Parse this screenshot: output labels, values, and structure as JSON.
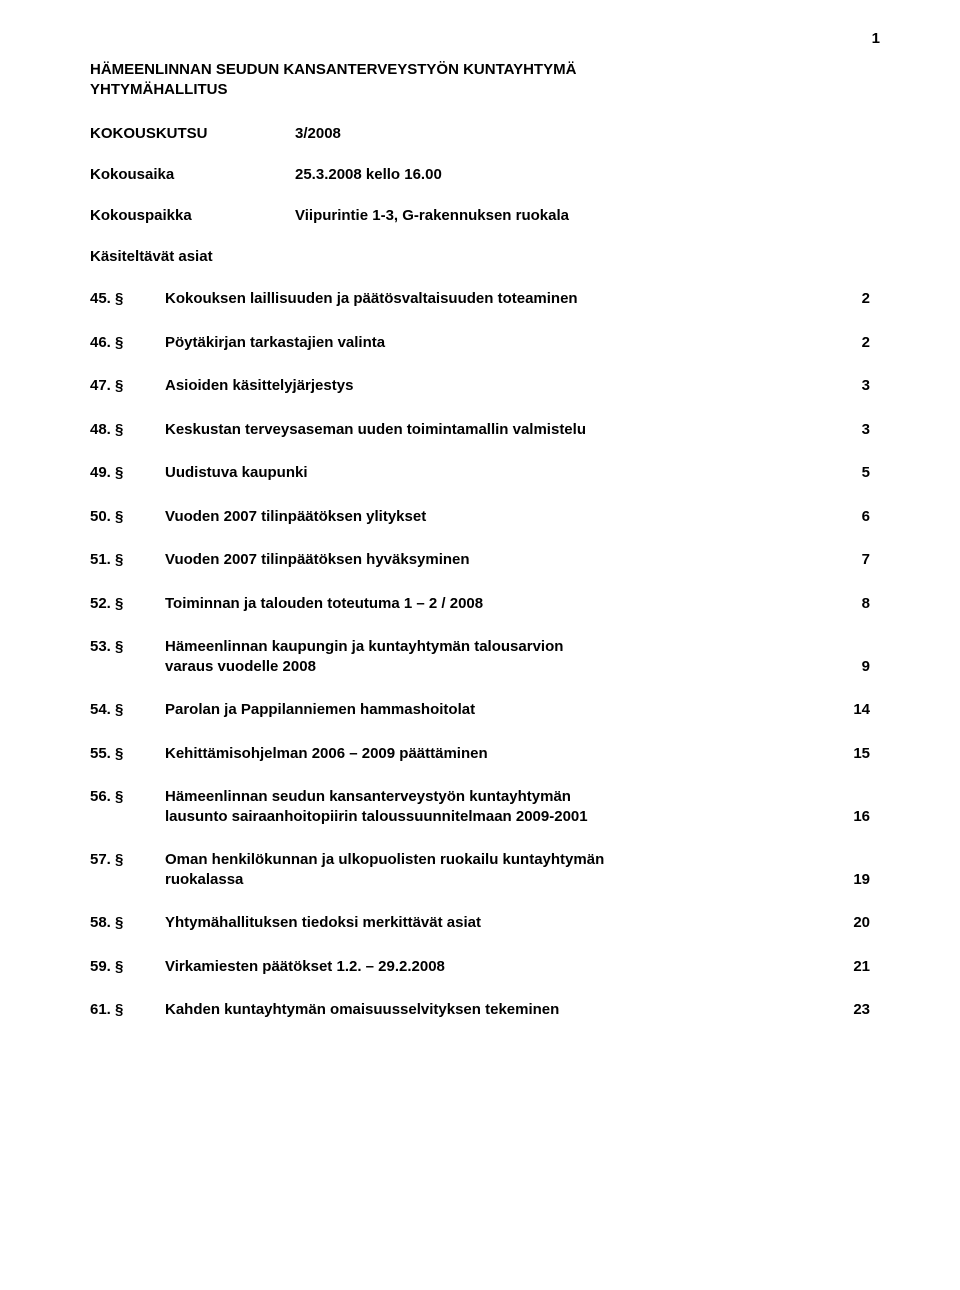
{
  "page_number": "1",
  "header_line1": "HÄMEENLINNAN SEUDUN KANSANTERVEYSTYÖN KUNTAYHTYMÄ",
  "header_line2": "YHTYMÄHALLITUS",
  "meeting": {
    "notice_label": "KOKOUSKUTSU",
    "notice_value": "3/2008",
    "time_label": "Kokousaika",
    "time_value": "25.3.2008 kello 16.00",
    "place_label": "Kokouspaikka",
    "place_value": "Viipurintie 1-3, G-rakennuksen ruokala"
  },
  "agenda_title": "Käsiteltävät asiat",
  "items": [
    {
      "num": "45. §",
      "text": "Kokouksen laillisuuden ja päätösvaltaisuuden toteaminen",
      "page": "2"
    },
    {
      "num": "46. §",
      "text": "Pöytäkirjan tarkastajien valinta",
      "page": "2"
    },
    {
      "num": "47. §",
      "text": "Asioiden käsittelyjärjestys",
      "page": "3"
    },
    {
      "num": "48. §",
      "text": "Keskustan terveysaseman  uuden toimintamallin valmistelu",
      "page": "3"
    },
    {
      "num": "49. §",
      "text": "Uudistuva kaupunki",
      "page": "5"
    },
    {
      "num": "50. §",
      "text": "Vuoden 2007 tilinpäätöksen ylitykset",
      "page": "6"
    },
    {
      "num": "51. §",
      "text": "Vuoden 2007 tilinpäätöksen hyväksyminen",
      "page": "7"
    },
    {
      "num": "52. §",
      "text": "Toiminnan ja talouden toteutuma 1 – 2 / 2008",
      "page": "8"
    },
    {
      "num": "53. §",
      "text_line1": "Hämeenlinnan kaupungin ja kuntayhtymän talousarvion",
      "text_line2": "varaus   vuodelle 2008",
      "page": "9",
      "multiline": true
    },
    {
      "num": "54. §",
      "text": "Parolan ja Pappilanniemen hammashoitolat",
      "page": "14"
    },
    {
      "num": "55. §",
      "text": "Kehittämisohjelman 2006 – 2009 päättäminen",
      "page": "15"
    },
    {
      "num": "56. §",
      "text_line1": "Hämeenlinnan seudun kansanterveystyön kuntayhtymän",
      "text_line2": "lausunto sairaanhoitopiirin taloussuunnitelmaan 2009-2001",
      "page": "16",
      "multiline": true
    },
    {
      "num": "57. §",
      "text_line1": "Oman henkilökunnan ja ulkopuolisten ruokailu kuntayhtymän",
      "text_line2": "ruokalassa",
      "page": "19",
      "multiline": true
    },
    {
      "num": "58. §",
      "text": "Yhtymähallituksen tiedoksi merkittävät asiat",
      "page": "20"
    },
    {
      "num": "59. §",
      "text": "Virkamiesten päätökset 1.2. – 29.2.2008",
      "page": "21"
    },
    {
      "num": "61. §",
      "text": "Kahden kuntayhtymän omaisuusselvityksen tekeminen",
      "page": "23"
    }
  ]
}
